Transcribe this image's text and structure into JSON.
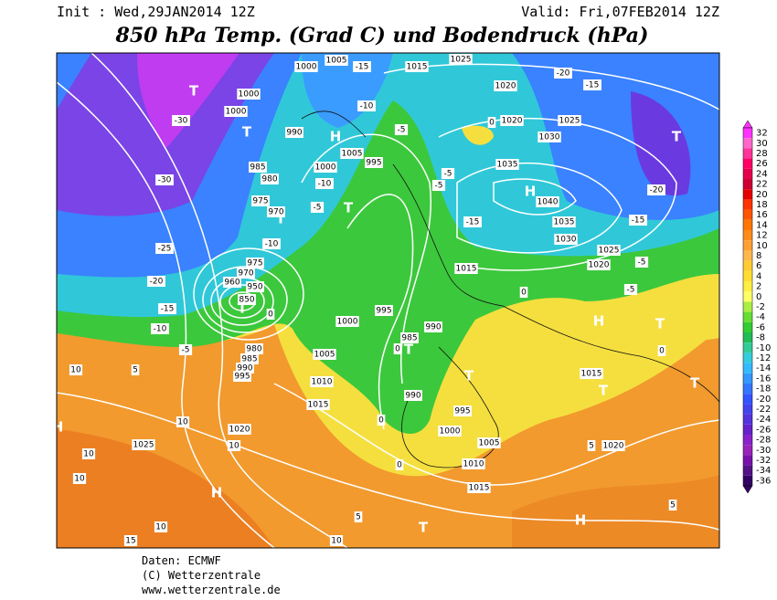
{
  "header": {
    "init": "Init : Wed,29JAN2014 12Z",
    "valid": "Valid: Fri,07FEB2014 12Z",
    "title": "850 hPa Temp. (Grad C) und Bodendruck (hPa)"
  },
  "colorbar": {
    "ticks": [
      32,
      30,
      28,
      26,
      24,
      22,
      20,
      18,
      16,
      14,
      12,
      10,
      8,
      6,
      4,
      2,
      0,
      -2,
      -4,
      -6,
      -8,
      -10,
      -12,
      -14,
      -16,
      -18,
      -20,
      -22,
      -24,
      -26,
      -28,
      -30,
      -32,
      -34,
      -36
    ],
    "colors": [
      "#ff33ff",
      "#ff66cc",
      "#ff3399",
      "#ff0066",
      "#e6004c",
      "#cc0033",
      "#e60000",
      "#ff3300",
      "#ff5500",
      "#ff7700",
      "#ff8c1a",
      "#ffa033",
      "#ffb84d",
      "#ffcc33",
      "#ffdd33",
      "#ffee44",
      "#ffff66",
      "#aaee44",
      "#66dd33",
      "#33cc33",
      "#22bb55",
      "#33cc99",
      "#33ccdd",
      "#33bbff",
      "#3399ff",
      "#3377ff",
      "#3355ff",
      "#4444ee",
      "#5533dd",
      "#6622cc",
      "#8822cc",
      "#9922bb",
      "#7711aa",
      "#551188",
      "#330066"
    ]
  },
  "map": {
    "pressure_systems": [
      "T",
      "T",
      "H",
      "T",
      "H",
      "T",
      "T",
      "T",
      "T",
      "T",
      "H",
      "H",
      "T",
      "H",
      "T",
      "T",
      "T",
      "H"
    ],
    "isobar_labels": [
      "1000",
      "1005",
      "1015",
      "1025",
      "1020",
      "1020",
      "1025",
      "1030",
      "1035",
      "1040",
      "1035",
      "1030",
      "1025",
      "1020",
      "1015",
      "1000",
      "1000",
      "990",
      "1000",
      "1005",
      "995",
      "985",
      "980",
      "975",
      "970",
      "975",
      "970",
      "960",
      "950",
      "850",
      "995",
      "1000",
      "985",
      "990",
      "1005",
      "1010",
      "1015",
      "1020",
      "1025",
      "990",
      "995",
      "1000",
      "1005",
      "1010",
      "1015",
      "1015",
      "1020",
      "980",
      "985",
      "990",
      "995"
    ],
    "temperature_labels": [
      "-30",
      "-30",
      "-25",
      "-20",
      "-15",
      "-10",
      "-5",
      "10",
      "5",
      "10",
      "10",
      "10",
      "10",
      "10",
      "15",
      "5",
      "10",
      "-20",
      "-15",
      "-20",
      "-15",
      "-5",
      "-5",
      "-5",
      "-5",
      "-5",
      "-15",
      "-10",
      "-10",
      "-10",
      "-5",
      "-15",
      "0",
      "0",
      "0",
      "0",
      "0",
      "0",
      "0",
      "5",
      "5"
    ]
  },
  "footer": {
    "source": "Daten: ECMWF",
    "copyright": "(C) Wetterzentrale",
    "url": "www.wetterzentrale.de"
  }
}
